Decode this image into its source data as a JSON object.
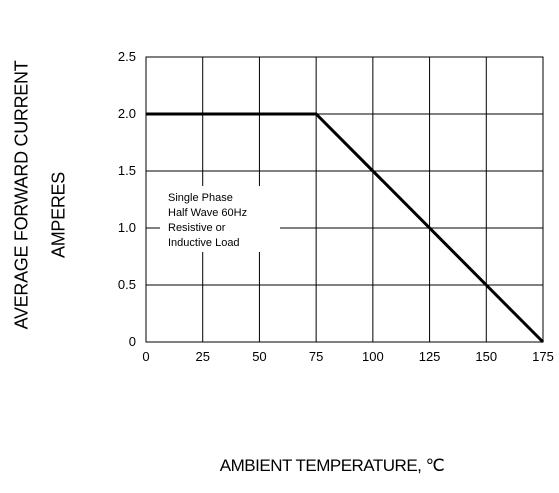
{
  "chart_data": {
    "type": "line",
    "xlabel": "AMBIENT TEMPERATURE, ℃",
    "ylabel_lines": [
      "AVERAGE FORWARD CURRENT",
      "AMPERES"
    ],
    "xlim": [
      0,
      175
    ],
    "ylim": [
      0,
      2.5
    ],
    "xticks": [
      0,
      25,
      50,
      75,
      100,
      125,
      150,
      175
    ],
    "yticks": [
      0,
      0.5,
      1.0,
      1.5,
      2.0,
      2.5
    ],
    "ytick_labels": [
      "0",
      "0.5",
      "1.0",
      "1.5",
      "2.0",
      "2.5"
    ],
    "grid": true,
    "series": [
      {
        "x": [
          0,
          75,
          175
        ],
        "y": [
          2.0,
          2.0,
          0
        ]
      }
    ],
    "annotation": [
      "Single Phase",
      "Half Wave 60Hz",
      "Resistive or",
      "Inductive Load"
    ]
  }
}
